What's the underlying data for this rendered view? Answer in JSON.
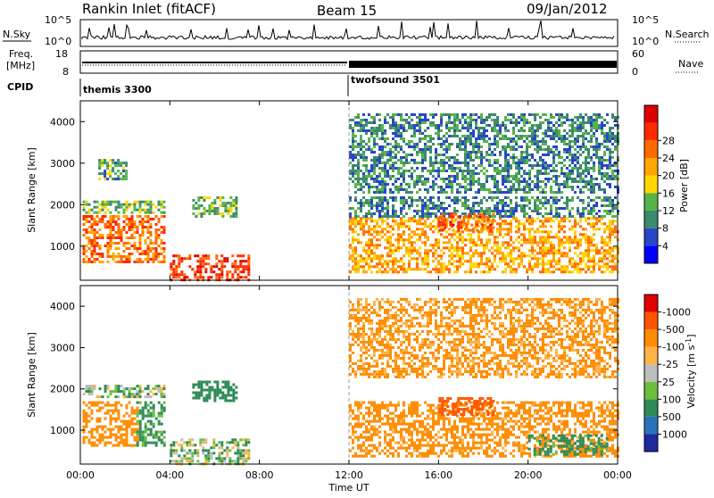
{
  "header": {
    "station": "Rankin Inlet (fitACF)",
    "beam": "Beam 15",
    "date": "09/Jan/2012"
  },
  "noise_panel": {
    "left_label": "N.Sky",
    "right_label": "N.Search",
    "left_ticks": [
      "10^5",
      "10^0"
    ],
    "right_ticks": [
      "10^5",
      "10^0"
    ]
  },
  "freq_panel": {
    "left_label_1": "Freq.",
    "left_label_2": "[MHz]",
    "right_label": "Nave",
    "left_ticks": [
      "18",
      "8"
    ],
    "right_ticks": [
      "60",
      "0"
    ]
  },
  "cpid_panel": {
    "label": "CPID",
    "segments": [
      {
        "name": "themis 3300",
        "start_hour": 0,
        "end_hour": 12
      },
      {
        "name": "twofsound 3501",
        "start_hour": 12,
        "end_hour": 24
      }
    ]
  },
  "x_axis": {
    "label": "Time UT",
    "ticks": [
      "00:00",
      "04:00",
      "08:00",
      "12:00",
      "16:00",
      "20:00",
      "00:00"
    ]
  },
  "y_axis": {
    "label": "Slant Range [km]",
    "ticks": [
      "1000",
      "2000",
      "3000",
      "4000"
    ]
  },
  "power_colorbar": {
    "label": "Power [dB]",
    "ticks": [
      "4",
      "8",
      "12",
      "16",
      "20",
      "24",
      "28"
    ],
    "colors": [
      "#0000ff",
      "#2846c8",
      "#3c8a6e",
      "#58b44a",
      "#ffd700",
      "#ffa500",
      "#ff6a00",
      "#ff2a00",
      "#e00000"
    ]
  },
  "velocity_colorbar": {
    "label": "Velocity [m s^-1]",
    "ticks": [
      "1000",
      "500",
      "100",
      "25",
      "-25",
      "-100",
      "-500",
      "-1000"
    ],
    "colors": [
      "#1e2a9c",
      "#2a73b8",
      "#2e8b57",
      "#6bbf3a",
      "#bdbdbd",
      "#ffb347",
      "#ff8c00",
      "#ff5500",
      "#e00000"
    ]
  },
  "chart_data": [
    {
      "type": "heatmap",
      "title": "Power",
      "xlabel": "Time UT",
      "ylabel": "Slant Range [km]",
      "xlim": [
        0,
        24
      ],
      "ylim": [
        180,
        4500
      ],
      "regions": [
        {
          "t": [
            0.1,
            3.8
          ],
          "r": [
            600,
            1750
          ],
          "value": 24
        },
        {
          "t": [
            0.1,
            3.8
          ],
          "r": [
            1800,
            2100
          ],
          "value": 12
        },
        {
          "t": [
            0.8,
            2.0
          ],
          "r": [
            2600,
            3100
          ],
          "value": 10
        },
        {
          "t": [
            4.0,
            7.5
          ],
          "r": [
            180,
            800
          ],
          "value": 28
        },
        {
          "t": [
            5.0,
            7.0
          ],
          "r": [
            1700,
            2200
          ],
          "value": 12
        },
        {
          "t": [
            12.0,
            24.0
          ],
          "r": [
            400,
            1700
          ],
          "value": 20
        },
        {
          "t": [
            12.0,
            24.0
          ],
          "r": [
            1700,
            2200
          ],
          "value": 8
        },
        {
          "t": [
            16.0,
            18.5
          ],
          "r": [
            1400,
            1800
          ],
          "value": 26
        },
        {
          "t": [
            12.0,
            24.0
          ],
          "r": [
            2300,
            4200
          ],
          "value": 8
        }
      ]
    },
    {
      "type": "heatmap",
      "title": "Velocity",
      "xlabel": "Time UT",
      "ylabel": "Slant Range [km]",
      "xlim": [
        0,
        24
      ],
      "ylim": [
        180,
        4500
      ],
      "regions": [
        {
          "t": [
            0.1,
            2.5
          ],
          "r": [
            600,
            1700
          ],
          "value": -300
        },
        {
          "t": [
            2.5,
            3.8
          ],
          "r": [
            600,
            1700
          ],
          "value": 150
        },
        {
          "t": [
            0.1,
            3.8
          ],
          "r": [
            1800,
            2100
          ],
          "value": 50
        },
        {
          "t": [
            4.0,
            7.5
          ],
          "r": [
            180,
            800
          ],
          "value": 60
        },
        {
          "t": [
            5.0,
            7.0
          ],
          "r": [
            1700,
            2200
          ],
          "value": 300
        },
        {
          "t": [
            12.0,
            24.0
          ],
          "r": [
            400,
            1700
          ],
          "value": -200
        },
        {
          "t": [
            16.0,
            18.5
          ],
          "r": [
            1400,
            1800
          ],
          "value": -700
        },
        {
          "t": [
            20.0,
            23.5
          ],
          "r": [
            400,
            900
          ],
          "value": 200
        },
        {
          "t": [
            12.0,
            24.0
          ],
          "r": [
            2300,
            4200
          ],
          "value": -150
        }
      ]
    }
  ]
}
